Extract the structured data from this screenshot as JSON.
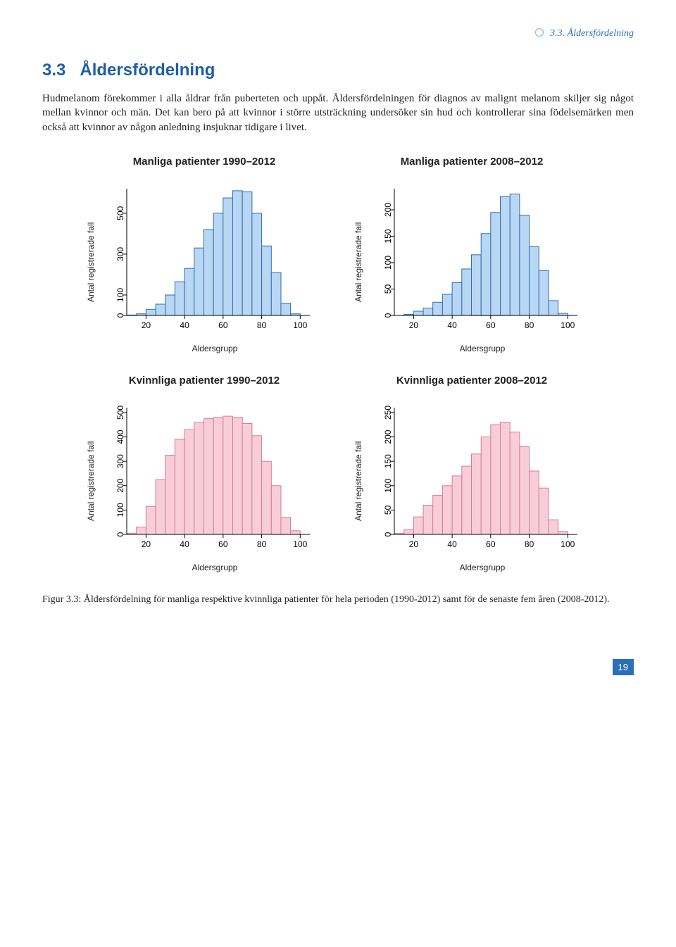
{
  "header": {
    "crumb": "3.3.  Åldersfördelning"
  },
  "section": {
    "number": "3.3",
    "title": "Åldersfördelning"
  },
  "paragraph": "Hudmelanom förekommer i alla åldrar från puberteten och uppåt. Åldersfördelningen för diagnos av malignt melanom skiljer sig något mellan kvinnor och män. Det kan bero på att kvinnor i större utsträckning undersöker sin hud och kontrollerar sina födelsemärken men också att kvinnor av någon anledning insjuknar tidigare i livet.",
  "chart_common": {
    "xlabel": "Aldersgrupp",
    "ylabel": "Antal registrerade fall",
    "xticks": [
      20,
      40,
      60,
      80,
      100
    ],
    "xlim": [
      10,
      105
    ],
    "bin_width": 5,
    "bin_start": 10,
    "axis_color": "#000000",
    "tick_fontsize": 12,
    "label_fontsize": 12,
    "title_fontsize": 15,
    "font_family": "Helvetica"
  },
  "charts": [
    {
      "id": "male_1990_2012",
      "title": "Manliga patienter 1990–2012",
      "fill": "#b9d6f2",
      "stroke": "#2a6fb8",
      "yticks": [
        0,
        100,
        300,
        500
      ],
      "ylim": [
        0,
        620
      ],
      "values": [
        2,
        8,
        30,
        55,
        100,
        165,
        230,
        330,
        420,
        500,
        575,
        610,
        605,
        500,
        340,
        210,
        60,
        8,
        0
      ]
    },
    {
      "id": "male_2008_2012",
      "title": "Manliga patienter 2008–2012",
      "fill": "#b9d6f2",
      "stroke": "#2a6fb8",
      "yticks": [
        0,
        50,
        100,
        150,
        200
      ],
      "ylim": [
        0,
        240
      ],
      "values": [
        0,
        2,
        8,
        14,
        25,
        40,
        62,
        88,
        115,
        155,
        195,
        225,
        230,
        190,
        130,
        85,
        28,
        4,
        0
      ]
    },
    {
      "id": "female_1990_2012",
      "title": "Kvinnliga patienter 1990–2012",
      "fill": "#f7cdd8",
      "stroke": "#d97a9b",
      "yticks": [
        0,
        100,
        200,
        300,
        400,
        500
      ],
      "ylim": [
        0,
        520
      ],
      "values": [
        5,
        30,
        115,
        225,
        325,
        390,
        430,
        460,
        475,
        480,
        485,
        480,
        455,
        405,
        300,
        200,
        70,
        15,
        0
      ]
    },
    {
      "id": "female_2008_2012",
      "title": "Kvinnliga patienter 2008–2012",
      "fill": "#f7cdd8",
      "stroke": "#d97a9b",
      "yticks": [
        0,
        50,
        100,
        150,
        200,
        250
      ],
      "ylim": [
        0,
        260
      ],
      "values": [
        2,
        10,
        36,
        60,
        80,
        100,
        120,
        140,
        165,
        200,
        225,
        230,
        210,
        180,
        130,
        95,
        30,
        6,
        0
      ]
    }
  ],
  "caption": "Figur 3.3: Åldersfördelning för manliga respektive kvinnliga patienter för hela perioden (1990-2012) samt för de senaste fem åren (2008-2012).",
  "page_number": "19"
}
